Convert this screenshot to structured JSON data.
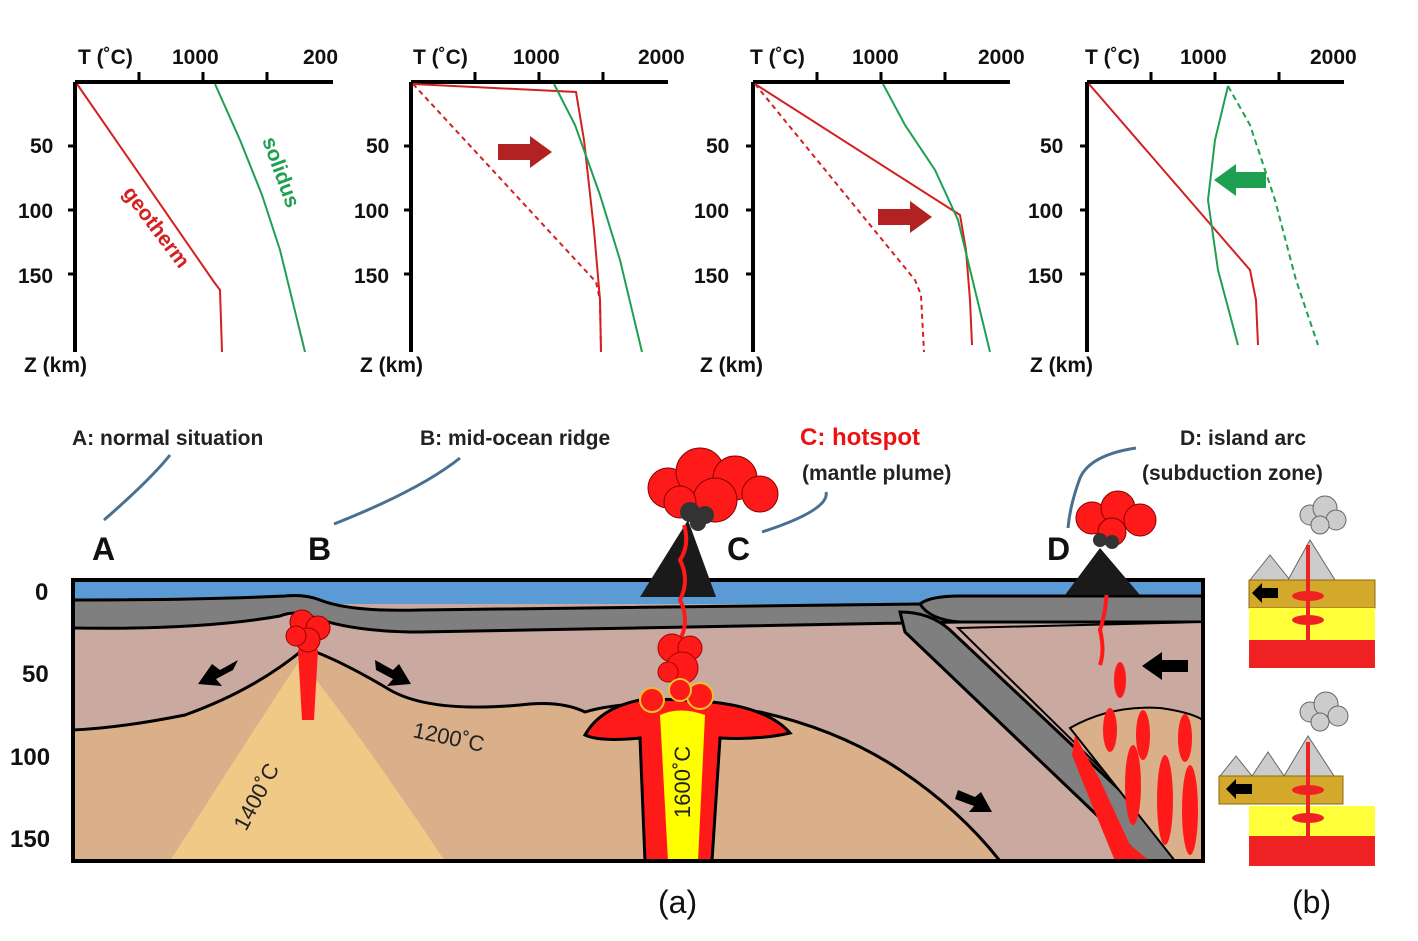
{
  "graphs": [
    {
      "t_label": "T (˚C)",
      "ticks": [
        "1000",
        "200"
      ],
      "z_label": "Z (km)",
      "depths": [
        "50",
        "100",
        "150"
      ],
      "geotherm_label": "geotherm",
      "solidus_label": "solidus"
    },
    {
      "t_label": "T (˚C)",
      "ticks": [
        "1000",
        "2000"
      ],
      "z_label": "Z (km)",
      "depths": [
        "50",
        "100",
        "150"
      ]
    },
    {
      "t_label": "T (˚C)",
      "ticks": [
        "1000",
        "2000"
      ],
      "z_label": "Z (km)",
      "depths": [
        "50",
        "100",
        "150"
      ]
    },
    {
      "t_label": "T (˚C)",
      "ticks": [
        "1000",
        "2000"
      ],
      "z_label": "Z (km)",
      "depths": [
        "50",
        "100",
        "150"
      ]
    }
  ],
  "labels": {
    "a": "A: normal situation",
    "b": "B: mid-ocean ridge",
    "c": "C: hotspot",
    "c_sub": "(mantle plume)",
    "d": "D: island arc",
    "d_sub": "(subduction zone)"
  },
  "letters": [
    "A",
    "B",
    "C",
    "D"
  ],
  "section": {
    "depths": [
      "0",
      "50",
      "100",
      "150"
    ],
    "iso_1200": "1200˚C",
    "iso_1400": "1400˚C",
    "iso_1600": "1600˚C"
  },
  "captions": {
    "a": "(a)",
    "b": "(b)"
  },
  "colors": {
    "geotherm": "#d42020",
    "solidus": "#1fa050",
    "ocean": "#5b9bd5",
    "lithosphere": "#7f7f7f",
    "mantle": "#c9a9a0",
    "asthenosphere": "#d9b089",
    "hot": "#f1c987",
    "magma": "#ff1a1a",
    "plume_core": "#ffff00"
  }
}
